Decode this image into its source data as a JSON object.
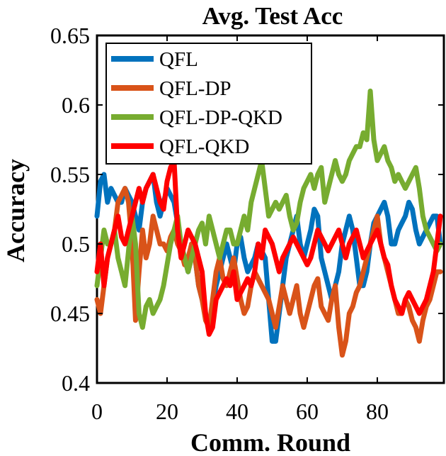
{
  "chart_data": {
    "type": "line",
    "title": "Avg. Test Acc",
    "xlabel": "Comm. Round",
    "ylabel": "Accuracy",
    "xlim": [
      0,
      99
    ],
    "ylim": [
      0.4,
      0.65
    ],
    "xticks": [
      0,
      20,
      40,
      60,
      80
    ],
    "yticks": [
      0.4,
      0.45,
      0.5,
      0.55,
      0.6,
      0.65
    ],
    "xtick_labels": [
      "0",
      "20",
      "40",
      "60",
      "80"
    ],
    "ytick_labels": [
      "0.4",
      "0.45",
      "0.5",
      "0.55",
      "0.6",
      "0.65"
    ],
    "legend_position": "top-left",
    "series": [
      {
        "name": "QFL",
        "color": "#0072BD",
        "values": [
          0.52,
          0.545,
          0.55,
          0.53,
          0.54,
          0.535,
          0.53,
          0.53,
          0.54,
          0.535,
          0.53,
          0.52,
          0.51,
          0.53,
          0.54,
          0.545,
          0.55,
          0.53,
          0.52,
          0.53,
          0.54,
          0.535,
          0.53,
          0.515,
          0.5,
          0.49,
          0.48,
          0.5,
          0.49,
          0.47,
          0.46,
          0.45,
          0.44,
          0.455,
          0.47,
          0.48,
          0.49,
          0.5,
          0.49,
          0.48,
          0.5,
          0.505,
          0.49,
          0.48,
          0.485,
          0.49,
          0.5,
          0.495,
          0.49,
          0.46,
          0.43,
          0.43,
          0.45,
          0.47,
          0.49,
          0.5,
          0.51,
          0.52,
          0.5,
          0.49,
          0.5,
          0.51,
          0.525,
          0.52,
          0.49,
          0.48,
          0.47,
          0.46,
          0.47,
          0.48,
          0.5,
          0.51,
          0.52,
          0.51,
          0.49,
          0.47,
          0.47,
          0.48,
          0.5,
          0.515,
          0.52,
          0.525,
          0.53,
          0.52,
          0.5,
          0.5,
          0.51,
          0.515,
          0.52,
          0.53,
          0.525,
          0.51,
          0.5,
          0.505,
          0.51,
          0.515,
          0.52,
          0.52,
          0.5
        ]
      },
      {
        "name": "QFL-DP",
        "color": "#D95319",
        "values": [
          0.46,
          0.45,
          0.47,
          0.49,
          0.5,
          0.51,
          0.53,
          0.535,
          0.54,
          0.53,
          0.5,
          0.445,
          0.48,
          0.51,
          0.49,
          0.5,
          0.52,
          0.51,
          0.5,
          0.5,
          0.495,
          0.505,
          0.51,
          0.5,
          0.495,
          0.485,
          0.49,
          0.5,
          0.49,
          0.47,
          0.46,
          0.445,
          0.44,
          0.46,
          0.48,
          0.49,
          0.475,
          0.47,
          0.48,
          0.49,
          0.475,
          0.46,
          0.45,
          0.455,
          0.47,
          0.48,
          0.475,
          0.47,
          0.465,
          0.46,
          0.45,
          0.44,
          0.455,
          0.47,
          0.46,
          0.45,
          0.46,
          0.47,
          0.45,
          0.44,
          0.45,
          0.46,
          0.47,
          0.475,
          0.455,
          0.45,
          0.445,
          0.46,
          0.47,
          0.44,
          0.42,
          0.43,
          0.45,
          0.455,
          0.465,
          0.47,
          0.48,
          0.49,
          0.5,
          0.51,
          0.52,
          0.5,
          0.49,
          0.48,
          0.47,
          0.46,
          0.45,
          0.45,
          0.46,
          0.455,
          0.445,
          0.44,
          0.43,
          0.445,
          0.455,
          0.46,
          0.47,
          0.48,
          0.48
        ]
      },
      {
        "name": "QFL-DP-QKD",
        "color": "#77AC30",
        "values": [
          0.47,
          0.49,
          0.51,
          0.5,
          0.5,
          0.51,
          0.49,
          0.48,
          0.47,
          0.495,
          0.52,
          0.5,
          0.45,
          0.44,
          0.455,
          0.46,
          0.45,
          0.455,
          0.46,
          0.47,
          0.485,
          0.5,
          0.51,
          0.52,
          0.5,
          0.49,
          0.48,
          0.49,
          0.5,
          0.51,
          0.515,
          0.5,
          0.52,
          0.51,
          0.5,
          0.49,
          0.5,
          0.51,
          0.51,
          0.5,
          0.5,
          0.51,
          0.52,
          0.51,
          0.53,
          0.54,
          0.55,
          0.56,
          0.54,
          0.52,
          0.525,
          0.53,
          0.525,
          0.53,
          0.535,
          0.52,
          0.51,
          0.515,
          0.53,
          0.54,
          0.545,
          0.55,
          0.54,
          0.55,
          0.555,
          0.53,
          0.54,
          0.55,
          0.56,
          0.55,
          0.545,
          0.55,
          0.56,
          0.565,
          0.57,
          0.57,
          0.58,
          0.575,
          0.61,
          0.575,
          0.56,
          0.565,
          0.57,
          0.56,
          0.555,
          0.545,
          0.55,
          0.545,
          0.54,
          0.545,
          0.55,
          0.555,
          0.54,
          0.52,
          0.51,
          0.505,
          0.5,
          0.495,
          0.5
        ]
      },
      {
        "name": "QFL-QKD",
        "color": "#FF0000",
        "values": [
          0.48,
          0.5,
          0.47,
          0.49,
          0.5,
          0.51,
          0.52,
          0.505,
          0.5,
          0.51,
          0.52,
          0.53,
          0.54,
          0.53,
          0.54,
          0.545,
          0.55,
          0.54,
          0.53,
          0.525,
          0.545,
          0.555,
          0.56,
          0.51,
          0.49,
          0.5,
          0.51,
          0.505,
          0.5,
          0.49,
          0.48,
          0.45,
          0.435,
          0.44,
          0.46,
          0.465,
          0.47,
          0.475,
          0.47,
          0.48,
          0.46,
          0.465,
          0.47,
          0.475,
          0.47,
          0.48,
          0.5,
          0.49,
          0.51,
          0.505,
          0.5,
          0.49,
          0.48,
          0.49,
          0.495,
          0.5,
          0.505,
          0.5,
          0.495,
          0.49,
          0.485,
          0.49,
          0.5,
          0.51,
          0.505,
          0.5,
          0.495,
          0.5,
          0.505,
          0.51,
          0.5,
          0.49,
          0.5,
          0.505,
          0.51,
          0.5,
          0.49,
          0.495,
          0.5,
          0.505,
          0.51,
          0.5,
          0.49,
          0.485,
          0.47,
          0.46,
          0.455,
          0.45,
          0.46,
          0.465,
          0.46,
          0.455,
          0.45,
          0.455,
          0.46,
          0.47,
          0.48,
          0.5,
          0.52
        ]
      }
    ]
  }
}
